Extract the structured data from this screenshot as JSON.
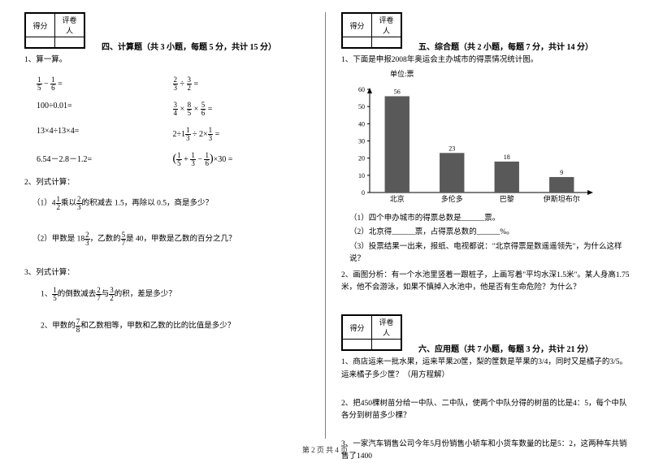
{
  "scorebox": {
    "h1": "得分",
    "h2": "评卷人"
  },
  "sec4": {
    "title": "四、计算题（共 3 小题，每题 5 分，共计 15 分）",
    "q1": "1、算一算。",
    "r1a_n1": "1",
    "r1a_d1": "5",
    "r1a_n2": "1",
    "r1a_d2": "6",
    "r1b_n1": "2",
    "r1b_d1": "3",
    "r1b_n2": "3",
    "r1b_d2": "2",
    "r2a": "100÷0.01=",
    "r2b_n1": "3",
    "r2b_d1": "4",
    "r2b_n2": "8",
    "r2b_d2": "5",
    "r2b_n3": "5",
    "r2b_d3": "6",
    "r3a": "13×4÷13×4=",
    "r3b_w": "2÷1",
    "r3b_n1": "1",
    "r3b_d1": "3",
    "r3b_n2": "1",
    "r3b_d2": "3",
    "r4a": "6.54－2.8－1.2=",
    "r4b_n1": "1",
    "r4b_d1": "5",
    "r4b_n2": "1",
    "r4b_d2": "3",
    "r4b_n3": "1",
    "r4b_d3": "6",
    "q2": "2、列式计算：",
    "q2_1a": "（1）4",
    "q2_1_n1": "1",
    "q2_1_d1": "2",
    "q2_1b": "乘以",
    "q2_1_n2": "2",
    "q2_1_d2": "3",
    "q2_1c": "的积减去 1.5，再除以 0.5，商是多少？",
    "q2_2a": "（2）甲数是 18",
    "q2_2_n1": "2",
    "q2_2_d1": "3",
    "q2_2b": "，乙数的",
    "q2_2_n2": "5",
    "q2_2_d2": "7",
    "q2_2c": "是 40，甲数是乙数的百分之几？",
    "q3": "3、列式计算：",
    "q3_1a": "1、",
    "q3_1_n1": "1",
    "q3_1_d1": "5",
    "q3_1b": "的倒数减去",
    "q3_1_n2": "2",
    "q3_1_d2": "7",
    "q3_1c": "与",
    "q3_1_n3": "3",
    "q3_1_d3": "2",
    "q3_1d": "的积，差是多少？",
    "q3_2a": "2、甲数的",
    "q3_2_n1": "7",
    "q3_2_d1": "8",
    "q3_2b": "和乙数相等，甲数和乙数的比的比值是多少？"
  },
  "sec5": {
    "title": "五、综合题（共 2 小题，每题 7 分，共计 14 分）",
    "q1": "1、下面是申报2008年奥运会主办城市的得票情况统计图。",
    "chart": {
      "unit": "单位:票",
      "ymax": 60,
      "ytick": 10,
      "categories": [
        "北京",
        "多伦多",
        "巴黎",
        "伊斯坦布尔"
      ],
      "values": [
        56,
        23,
        18,
        9
      ],
      "bar_color": "#595959",
      "axis_color": "#000000"
    },
    "sub1": "（1）四个申办城市的得票总数是______票。",
    "sub2": "（2）北京得______票，占得票总数的______%。",
    "sub3": "（3）投票结果一出来，报纸、电视都说：\"北京得票是数遥遥领先\"，为什么这样说？",
    "q2": "2、画图分析：有一个水池里竖着一跟桩子，上画写着\"平均水深1.5米\"。某人身高1.75米，他不会游泳，如果不慎掉入水池中，他是否有生命危险？为什么？"
  },
  "sec6": {
    "title": "六、应用题（共 7 小题，每题 3 分，共计 21 分）",
    "q1": "1、商店运来一批水果，运来苹果20筐，梨的筐数是苹果的3/4，同时又是橘子的3/5。运来橘子多少筐？（用方程解）",
    "q2": "2、把450棵树苗分给一中队、二中队，使两个中队分得的树苗的比是4：5，每个中队各分到树苗多少棵？",
    "q3": "3、一家汽车销售公司今年5月份销售小轿车和小货车数量的比是5：2，这两种车共销售了1400"
  },
  "footer": "第 2 页 共 4 页"
}
